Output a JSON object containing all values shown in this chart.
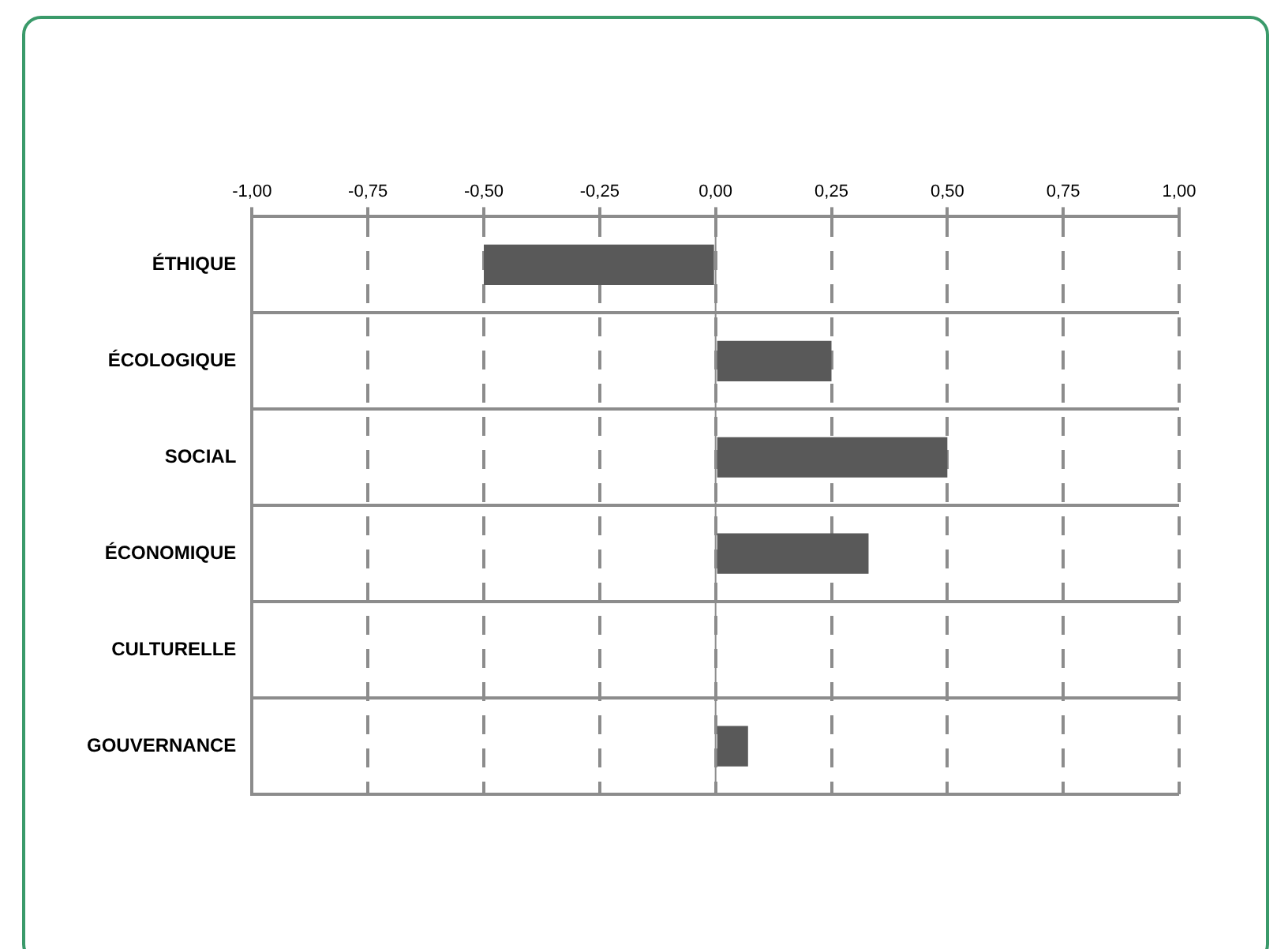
{
  "chart_data": {
    "type": "bar",
    "orientation": "horizontal",
    "categories": [
      "ÉTHIQUE",
      "ÉCOLOGIQUE",
      "SOCIAL",
      "ÉCONOMIQUE",
      "CULTURELLE",
      "GOUVERNANCE"
    ],
    "values": [
      -0.5,
      0.25,
      0.5,
      0.33,
      0,
      0.07
    ],
    "color": "#595959",
    "xlim": [
      -1,
      1
    ],
    "xticks": [
      {
        "value": -1,
        "label": "-1,00"
      },
      {
        "value": -0.75,
        "label": "-0,75"
      },
      {
        "value": -0.5,
        "label": "-0,50"
      },
      {
        "value": -0.25,
        "label": "-0,25"
      },
      {
        "value": 0,
        "label": "0,00"
      },
      {
        "value": 0.25,
        "label": "0,25"
      },
      {
        "value": 0.5,
        "label": "0,50"
      },
      {
        "value": 0.75,
        "label": "0,75"
      },
      {
        "value": 1,
        "label": "1,00"
      }
    ],
    "grid": true,
    "legend": false
  }
}
